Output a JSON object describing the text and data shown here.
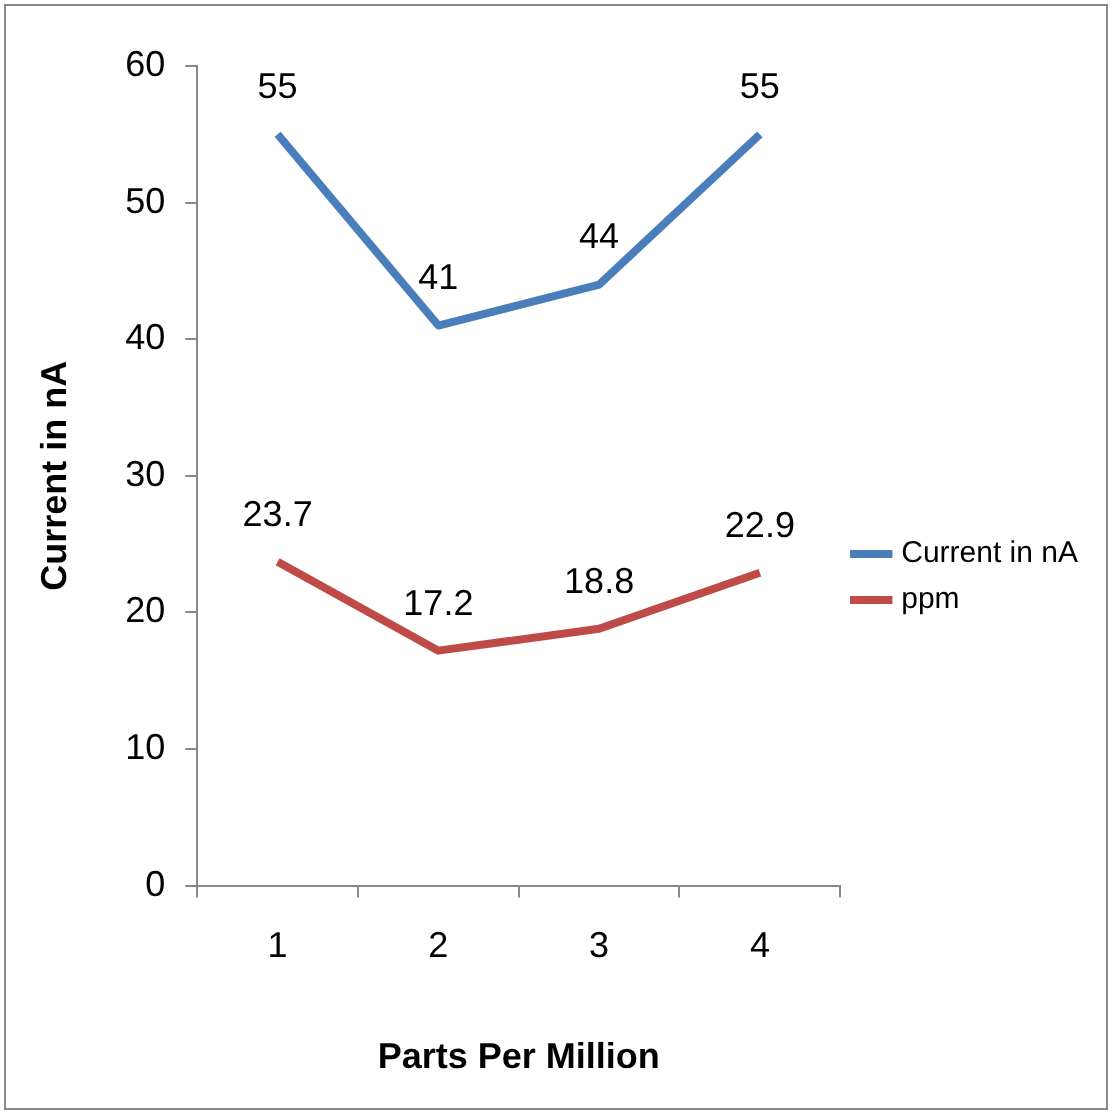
{
  "chart_data": {
    "type": "line",
    "xlabel": "Parts Per Million",
    "ylabel": "Current in nA",
    "categories": [
      "1",
      "2",
      "3",
      "4"
    ],
    "series": [
      {
        "name": "Current in nA",
        "color": "#4a7ebb",
        "values": [
          55,
          41,
          44,
          55
        ]
      },
      {
        "name": "ppm",
        "color": "#be4b48",
        "values": [
          23.7,
          17.2,
          18.8,
          22.9
        ]
      }
    ],
    "ylim": [
      0,
      60
    ],
    "yticks": [
      0,
      10,
      20,
      30,
      40,
      50,
      60
    ],
    "grid": false,
    "legend": "right",
    "marker": "none",
    "line_style": "solid",
    "data_labels": true
  }
}
